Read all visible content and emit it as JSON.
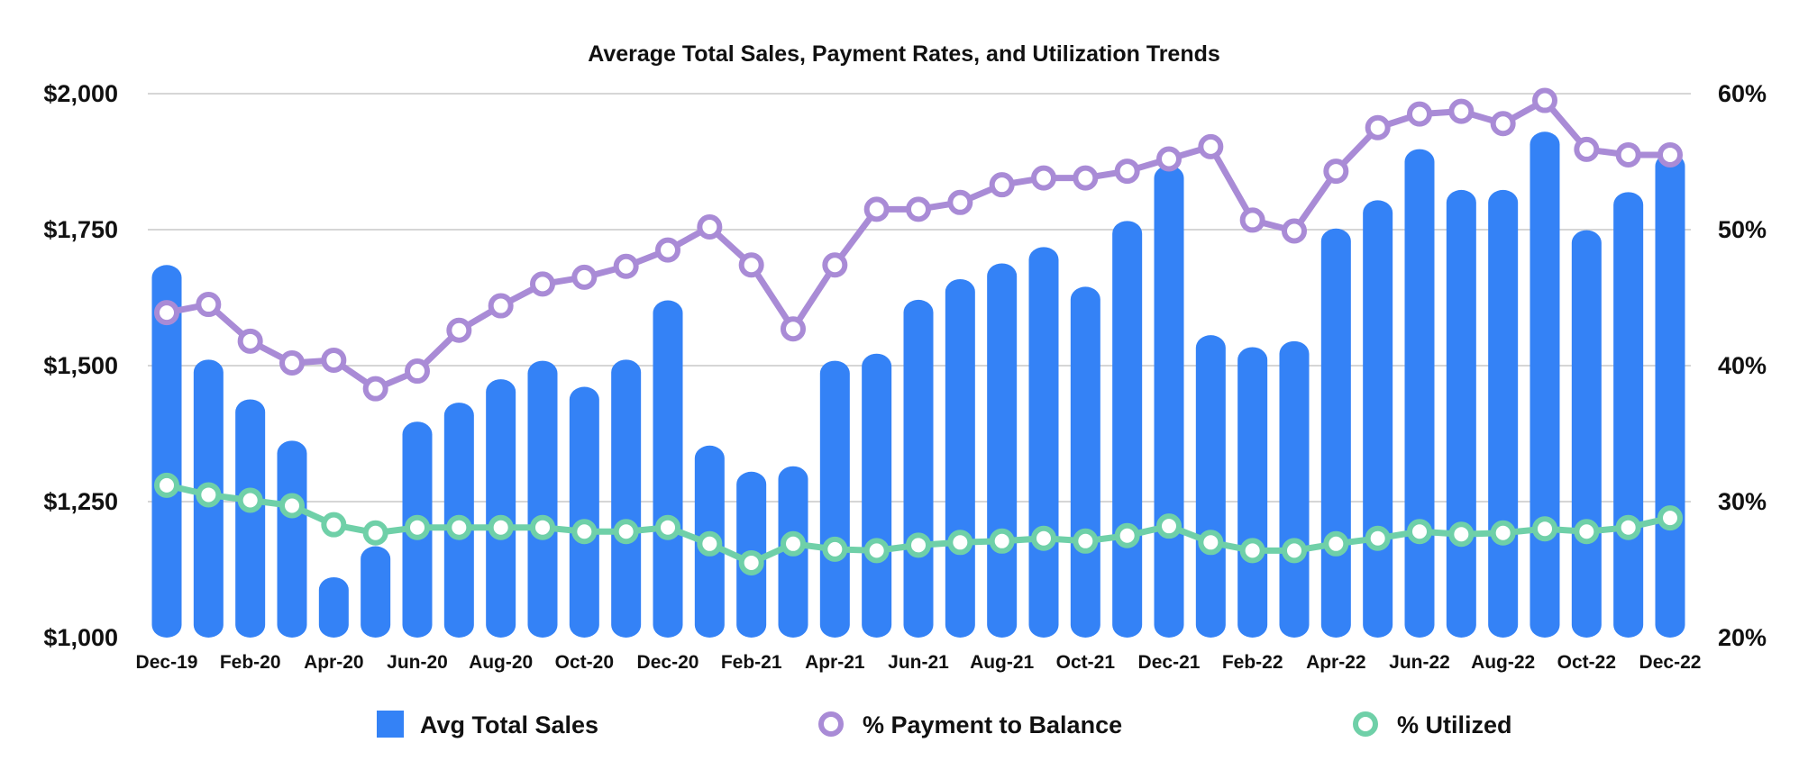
{
  "chart_data": {
    "type": "bar+line",
    "title": "Average Total Sales, Payment Rates, and Utilization Trends",
    "categories": [
      "Dec-19",
      "Jan-20",
      "Feb-20",
      "Mar-20",
      "Apr-20",
      "May-20",
      "Jun-20",
      "Jul-20",
      "Aug-20",
      "Sep-20",
      "Oct-20",
      "Nov-20",
      "Dec-20",
      "Jan-21",
      "Feb-21",
      "Mar-21",
      "Apr-21",
      "May-21",
      "Jun-21",
      "Jul-21",
      "Aug-21",
      "Sep-21",
      "Oct-21",
      "Nov-21",
      "Dec-21",
      "Jan-22",
      "Feb-22",
      "Mar-22",
      "Apr-22",
      "May-22",
      "Jun-22",
      "Jul-22",
      "Aug-22",
      "Sep-22",
      "Oct-22",
      "Nov-22",
      "Dec-22"
    ],
    "x_tick_labels": [
      "Dec-19",
      "Feb-20",
      "Apr-20",
      "Jun-20",
      "Aug-20",
      "Oct-20",
      "Dec-20",
      "Feb-21",
      "Apr-21",
      "Jun-21",
      "Aug-21",
      "Oct-21",
      "Dec-21",
      "Feb-22",
      "Apr-22",
      "Jun-22",
      "Aug-22",
      "Oct-22",
      "Dec-22"
    ],
    "y_left": {
      "range": [
        1000,
        2000
      ],
      "ticks": [
        1000,
        1250,
        1500,
        1750,
        2000
      ],
      "tick_labels": [
        "$1,000",
        "$1,250",
        "$1,500",
        "$1,750",
        "$2,000"
      ]
    },
    "y_right": {
      "range": [
        20,
        60
      ],
      "ticks": [
        20,
        30,
        40,
        50,
        60
      ],
      "tick_labels": [
        "20%",
        "30%",
        "40%",
        "50%",
        "60%"
      ]
    },
    "grid": true,
    "legend_position": "bottom",
    "series": [
      {
        "name": "Avg Total Sales",
        "type": "bar",
        "axis": "left",
        "color": "#3482f6",
        "values": [
          1685,
          1511,
          1438,
          1362,
          1111,
          1168,
          1397,
          1432,
          1475,
          1509,
          1461,
          1511,
          1620,
          1353,
          1305,
          1315,
          1509,
          1522,
          1621,
          1659,
          1688,
          1718,
          1645,
          1766,
          1868,
          1556,
          1534,
          1545,
          1752,
          1804,
          1898,
          1823,
          1823,
          1930,
          1749,
          1819,
          1890
        ]
      },
      {
        "name": "% Payment to Balance",
        "type": "line",
        "axis": "right",
        "color": "#a98bd6",
        "values": [
          43.9,
          44.5,
          41.8,
          40.2,
          40.4,
          38.3,
          39.6,
          42.6,
          44.4,
          46.0,
          46.5,
          47.3,
          48.5,
          50.2,
          47.4,
          42.7,
          47.4,
          51.5,
          51.5,
          52.0,
          53.3,
          53.8,
          53.8,
          54.3,
          55.2,
          56.1,
          50.7,
          49.9,
          54.3,
          57.5,
          58.5,
          58.7,
          57.8,
          59.5,
          55.9,
          55.5,
          55.5
        ]
      },
      {
        "name": "% Utilized",
        "type": "line",
        "axis": "right",
        "color": "#6fd0a8",
        "values": [
          31.2,
          30.5,
          30.1,
          29.7,
          28.3,
          27.7,
          28.1,
          28.1,
          28.1,
          28.1,
          27.8,
          27.8,
          28.1,
          26.9,
          25.5,
          26.9,
          26.5,
          26.4,
          26.8,
          27.0,
          27.1,
          27.3,
          27.1,
          27.5,
          28.2,
          27.0,
          26.4,
          26.4,
          26.9,
          27.3,
          27.8,
          27.6,
          27.7,
          28.0,
          27.8,
          28.1,
          28.8
        ]
      }
    ]
  }
}
